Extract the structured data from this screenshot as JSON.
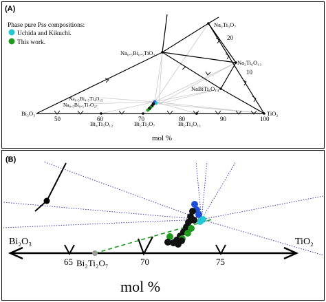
{
  "panel_a": {
    "tag": "(A)",
    "legend": {
      "title": "Phase pure Pss compositions:",
      "items": [
        {
          "label": "Uchida and Kikuchi.",
          "color": "#27c6d3"
        },
        {
          "label": "This work.",
          "color": "#1f9a1f"
        }
      ]
    },
    "compound_labels": {
      "na2ti3o7": "Na₂Ti₃O₇",
      "nbt": "Na₀.₅Bi₀.₅TiO₃",
      "na2ti6o13": "Na₂Ti₆O₁₃",
      "nabiti6o14": "NaBiTi₆O₁₄",
      "bi25": "Na₀.₅Bi₄.₅Ti₄O₁₅",
      "bi65": "Na₀.₅Bi₈.₅Ti₇O₂₇",
      "bi2o3": "Bi₂O₃",
      "tio2": "TiO₂",
      "bi4ti3o12": "Bi₄Ti₃O₁₂",
      "bi2ti2o7": "Bi₂Ti₂O₇",
      "bi2ti4o11": "Bi₂Ti₄O₁₁"
    },
    "axis_ticks": [
      "50",
      "60",
      "70",
      "80",
      "90",
      "100"
    ],
    "side_ticks": [
      "20",
      "10"
    ],
    "axis_label": "mol %"
  },
  "panel_b": {
    "tag": "(B)",
    "labels": {
      "bi2o3": "Bi₂O₃",
      "tio2": "TiO₂",
      "bi2ti2o7": "Bi₂Ti₂O₇"
    },
    "axis_ticks": [
      "65",
      "70",
      "75"
    ],
    "axis_label": "mol %"
  },
  "colors": {
    "uchida": "#27c6d3",
    "this_work": "#1f9a1f",
    "blue_point": "#1f4fd6",
    "black_point": "#111111",
    "guide_lines": "#3b3bb0",
    "tie_lines": "#c8c8c8",
    "bi2ti2o7_point": "#9a9a9a"
  }
}
